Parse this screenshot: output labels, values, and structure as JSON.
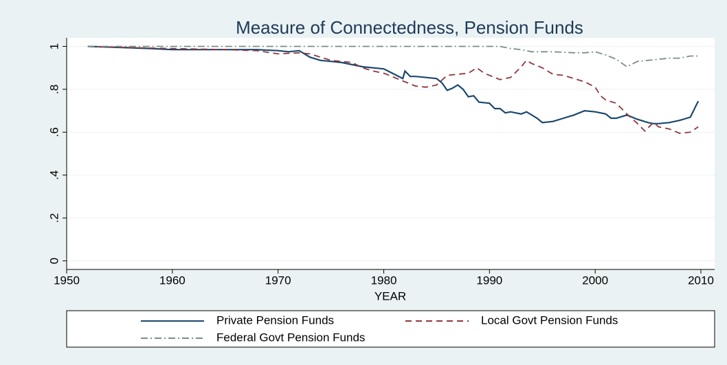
{
  "chart_data": {
    "type": "line",
    "title": "Measure of Connectedness, Pension Funds",
    "x_label": "YEAR",
    "xlim": [
      1950,
      2011.3
    ],
    "ylim": [
      -0.04,
      1.04
    ],
    "xticks": [
      1950,
      1960,
      1970,
      1980,
      1990,
      2000,
      2010
    ],
    "yticks": [
      0,
      {
        "value": 0.2,
        "label": ".2"
      },
      {
        "value": 0.4,
        "label": ".4"
      },
      {
        "value": 0.6,
        "label": ".6"
      },
      {
        "value": 0.8,
        "label": ".8"
      },
      1
    ],
    "grid": true,
    "series": [
      {
        "name": "Private Pension Funds",
        "color": "#1a476f",
        "style": "solid",
        "x": [
          1952,
          1955,
          1958,
          1960,
          1962,
          1965,
          1968,
          1970,
          1971,
          1972,
          1973,
          1974,
          1975,
          1976,
          1977,
          1978,
          1979,
          1980,
          1981,
          1981.8,
          1982,
          1982.5,
          1983,
          1984,
          1985,
          1985.5,
          1986,
          1986.5,
          1987,
          1987.5,
          1988,
          1988.5,
          1989,
          1990,
          1990.5,
          1991,
          1991.5,
          1992,
          1993,
          1993.5,
          1994,
          1994.5,
          1995,
          1996,
          1997,
          1998,
          1998.5,
          1999,
          2000,
          2001,
          2001.5,
          2002,
          2003,
          2004,
          2005,
          2005.5,
          2006,
          2007,
          2008,
          2009,
          2009.5,
          2009.75
        ],
        "values": [
          1.0,
          0.995,
          0.99,
          0.985,
          0.985,
          0.985,
          0.985,
          0.98,
          0.975,
          0.98,
          0.95,
          0.935,
          0.93,
          0.925,
          0.915,
          0.905,
          0.9,
          0.895,
          0.87,
          0.85,
          0.885,
          0.86,
          0.86,
          0.855,
          0.85,
          0.83,
          0.795,
          0.805,
          0.82,
          0.8,
          0.765,
          0.77,
          0.74,
          0.735,
          0.71,
          0.71,
          0.69,
          0.695,
          0.685,
          0.695,
          0.68,
          0.665,
          0.645,
          0.65,
          0.665,
          0.68,
          0.69,
          0.7,
          0.695,
          0.685,
          0.665,
          0.665,
          0.68,
          0.66,
          0.645,
          0.64,
          0.64,
          0.645,
          0.655,
          0.67,
          0.72,
          0.745
        ]
      },
      {
        "name": "Local Govt Pension Funds",
        "color": "#90353b",
        "style": "dashed",
        "x": [
          1952,
          1955,
          1960,
          1965,
          1968,
          1970,
          1972,
          1973,
          1974,
          1975,
          1977,
          1978,
          1979,
          1980,
          1981,
          1982,
          1983,
          1984,
          1985,
          1986,
          1987,
          1988,
          1988.8,
          1989.5,
          1990,
          1991,
          1992,
          1993,
          1993.5,
          1994,
          1995,
          1996,
          1997,
          1998,
          1999,
          2000,
          2000.5,
          2001,
          2002,
          2003,
          2004,
          2004.7,
          2005.5,
          2006,
          2007,
          2008,
          2009,
          2009.75
        ],
        "values": [
          1.0,
          0.995,
          0.99,
          0.985,
          0.98,
          0.965,
          0.97,
          0.965,
          0.95,
          0.935,
          0.925,
          0.9,
          0.885,
          0.875,
          0.855,
          0.835,
          0.815,
          0.81,
          0.82,
          0.865,
          0.87,
          0.875,
          0.9,
          0.875,
          0.865,
          0.845,
          0.855,
          0.905,
          0.935,
          0.92,
          0.9,
          0.87,
          0.865,
          0.85,
          0.835,
          0.81,
          0.77,
          0.75,
          0.735,
          0.685,
          0.64,
          0.605,
          0.645,
          0.625,
          0.615,
          0.595,
          0.6,
          0.625
        ]
      },
      {
        "name": "Federal Govt Pension Funds",
        "color": "#7a8f82",
        "style": "dashdot",
        "x": [
          1952,
          1960,
          1970,
          1980,
          1990,
          1991,
          1992,
          1993,
          1994,
          1996,
          1998,
          1999,
          2000,
          2001,
          2002,
          2003,
          2004,
          2005,
          2006,
          2007,
          2008,
          2009,
          2009.75
        ],
        "values": [
          1.0,
          1.0,
          1.0,
          1.0,
          1.0,
          1.0,
          0.99,
          0.985,
          0.975,
          0.975,
          0.97,
          0.97,
          0.975,
          0.96,
          0.94,
          0.905,
          0.93,
          0.935,
          0.94,
          0.945,
          0.945,
          0.955,
          0.955
        ]
      }
    ]
  }
}
